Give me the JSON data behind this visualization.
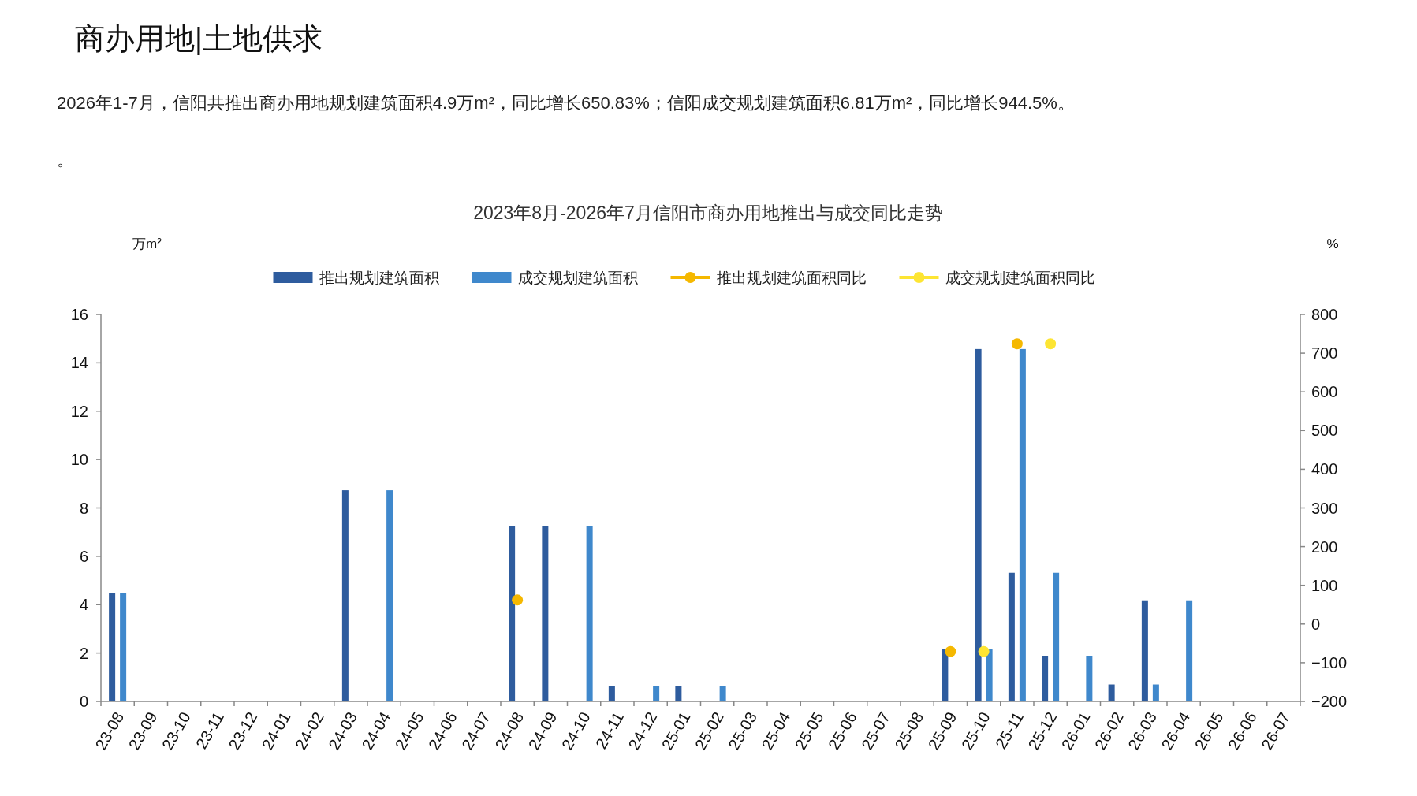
{
  "chart_data": {
    "type": "bar",
    "title": "商办用地|土地供求",
    "subtitle": "2023年8月-2026年7月信阳市商办用地推出与成交同比走势",
    "annotations": [
      "2026年1-7月，信阳共推出商办用地规划建筑面积4.9万m²，同比增长650.83%；信阳成交规划建筑面积6.81万m²，同比增长944.5%。",
      "。"
    ],
    "ylabel": "万m²",
    "y2label": "%",
    "categories": [
      "23-08",
      "23-09",
      "23-10",
      "23-11",
      "23-12",
      "24-01",
      "24-02",
      "24-03",
      "24-04",
      "24-05",
      "24-06",
      "24-07",
      "24-08",
      "24-09",
      "24-10",
      "24-11",
      "24-12",
      "25-01",
      "25-02",
      "25-03",
      "25-04",
      "25-05",
      "25-06",
      "25-07",
      "25-08",
      "25-09",
      "25-10",
      "25-11",
      "25-12",
      "26-01",
      "26-02",
      "26-03",
      "26-04",
      "26-05",
      "26-06",
      "26-07"
    ],
    "series": [
      {
        "name": "推出规划建筑面积",
        "color": "#2e5c9e",
        "values": [
          4.48,
          0,
          0,
          0,
          0,
          0,
          0,
          8.73,
          0,
          0,
          0,
          0,
          7.24,
          7.24,
          0,
          0.64,
          0,
          0.65,
          0,
          0,
          0,
          0,
          0,
          0,
          0,
          2.15,
          14.57,
          5.32,
          1.89,
          0,
          0.7,
          4.18,
          0,
          0,
          0,
          0
        ]
      },
      {
        "name": "成交规划建筑面积",
        "color": "#3f88cc",
        "values": [
          4.48,
          0,
          0,
          0,
          0,
          0,
          0,
          0,
          8.73,
          0,
          0,
          0,
          0,
          0,
          7.24,
          0,
          0.65,
          0,
          0.65,
          0,
          0,
          0,
          0,
          0,
          0,
          0,
          2.15,
          14.57,
          5.32,
          1.89,
          0,
          0.7,
          4.18,
          0,
          0,
          0
        ]
      },
      {
        "name": "推出规划建筑面积同比",
        "type": "scatter",
        "axis": "y2",
        "color": "#f5b800",
        "values": [
          null,
          null,
          null,
          null,
          null,
          null,
          null,
          null,
          null,
          null,
          null,
          null,
          62,
          null,
          null,
          null,
          null,
          null,
          null,
          null,
          null,
          null,
          null,
          null,
          null,
          -71,
          null,
          724,
          null,
          null,
          null,
          null,
          null,
          null,
          null,
          null
        ]
      },
      {
        "name": "成交规划建筑面积同比",
        "type": "scatter",
        "axis": "y2",
        "color": "#fde533",
        "values": [
          null,
          null,
          null,
          null,
          null,
          null,
          null,
          null,
          null,
          null,
          null,
          null,
          null,
          null,
          null,
          null,
          null,
          null,
          null,
          null,
          null,
          null,
          null,
          null,
          null,
          null,
          -71,
          null,
          724,
          null,
          null,
          null,
          null,
          null,
          null,
          null
        ]
      }
    ],
    "ylim": [
      0,
      16
    ],
    "yticks": [
      0,
      2,
      4,
      6,
      8,
      10,
      12,
      14,
      16
    ],
    "y2lim": [
      -200,
      800
    ],
    "y2ticks": [
      -200,
      -100,
      0,
      100,
      200,
      300,
      400,
      500,
      600,
      700,
      800
    ],
    "grid": false,
    "legend": "top",
    "marker": "circle"
  }
}
